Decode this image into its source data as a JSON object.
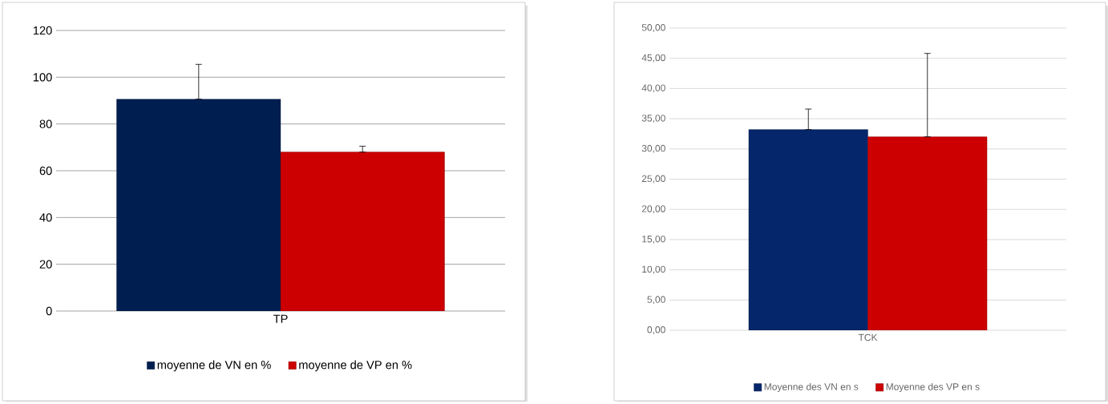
{
  "chart_data": [
    {
      "type": "bar",
      "categories": [
        "TP"
      ],
      "ylim": [
        0,
        120
      ],
      "yticks": [
        0,
        20,
        40,
        60,
        80,
        100,
        120
      ],
      "grid": "y",
      "legend": "bottom",
      "series": [
        {
          "name": "moyenne de VN en %",
          "color": "#001e50",
          "values": [
            90.6
          ],
          "errors": [
            [
              90.6,
              105.5
            ]
          ]
        },
        {
          "name": "moyenne de VP en %",
          "color": "#cc0000",
          "values": [
            68.0
          ],
          "errors": [
            [
              68.0,
              70.5
            ]
          ]
        }
      ]
    },
    {
      "type": "bar",
      "categories": [
        "TCK"
      ],
      "ylim": [
        0,
        50
      ],
      "yticks": [
        {
          "value": 0,
          "label": "0,00"
        },
        {
          "value": 5,
          "label": "5,00"
        },
        {
          "value": 10,
          "label": "10,00"
        },
        {
          "value": 15,
          "label": "15,00"
        },
        {
          "value": 20,
          "label": "20,00"
        },
        {
          "value": 25,
          "label": "25,00"
        },
        {
          "value": 30,
          "label": "30,00"
        },
        {
          "value": 35,
          "label": "35,00"
        },
        {
          "value": 40,
          "label": "40,00"
        },
        {
          "value": 45,
          "label": "45,00"
        },
        {
          "value": 50,
          "label": "50,00"
        }
      ],
      "grid": "y",
      "legend": "bottom",
      "series": [
        {
          "name": "Moyenne des VN en s",
          "color": "#05266a",
          "values": [
            33.2
          ],
          "errors": [
            [
              33.2,
              36.6
            ]
          ]
        },
        {
          "name": "Moyenne des VP en s",
          "color": "#cc0000",
          "values": [
            32.0
          ],
          "errors": [
            [
              32.0,
              45.8
            ]
          ]
        }
      ]
    }
  ]
}
